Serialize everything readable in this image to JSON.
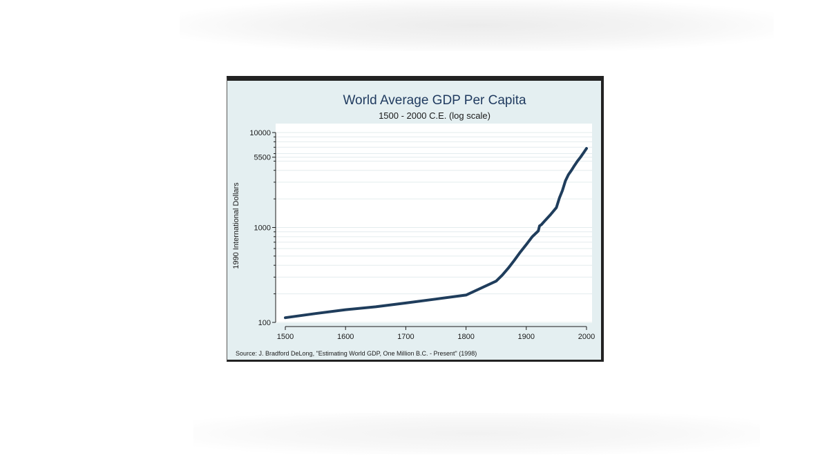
{
  "chart_data": {
    "type": "line",
    "title": "World Average GDP Per Capita",
    "subtitle": "1500 - 2000 C.E. (log scale)",
    "ylabel": "1990 International Dollars",
    "xlabel": "",
    "source": "Source: J. Bradford DeLong, \"Estimating World GDP, One Million B.C. - Present\" (1998)",
    "y_scale": "log",
    "xlim": [
      1500,
      2000
    ],
    "ylim": [
      100,
      10000
    ],
    "x_ticks": [
      1500,
      1600,
      1700,
      1800,
      1900,
      2000
    ],
    "x_tick_labels": [
      "1500",
      "1600",
      "1700",
      "1800",
      "1900",
      "2000"
    ],
    "y_ticks": [
      100,
      1000,
      5500,
      10000
    ],
    "y_tick_labels": [
      "100",
      "1000",
      "5500",
      "10000"
    ],
    "grid": true,
    "legend": "none",
    "series": [
      {
        "color": "#1f3d5c",
        "points": [
          [
            1500,
            112
          ],
          [
            1550,
            124
          ],
          [
            1600,
            136
          ],
          [
            1650,
            146
          ],
          [
            1700,
            160
          ],
          [
            1750,
            176
          ],
          [
            1800,
            194
          ],
          [
            1825,
            230
          ],
          [
            1850,
            272
          ],
          [
            1860,
            314
          ],
          [
            1870,
            372
          ],
          [
            1880,
            450
          ],
          [
            1890,
            550
          ],
          [
            1900,
            660
          ],
          [
            1910,
            800
          ],
          [
            1920,
            920
          ],
          [
            1922,
            1040
          ],
          [
            1925,
            1070
          ],
          [
            1930,
            1160
          ],
          [
            1940,
            1360
          ],
          [
            1950,
            1620
          ],
          [
            1955,
            2050
          ],
          [
            1960,
            2450
          ],
          [
            1965,
            3100
          ],
          [
            1970,
            3600
          ],
          [
            1975,
            4000
          ],
          [
            1980,
            4500
          ],
          [
            1985,
            5000
          ],
          [
            1990,
            5500
          ],
          [
            1995,
            6100
          ],
          [
            2000,
            6800
          ]
        ]
      }
    ]
  }
}
